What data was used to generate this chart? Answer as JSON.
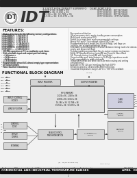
{
  "bg_color": "#ffffff",
  "header_bar_color": "#222222",
  "logo_circle_color": "#888888",
  "logo_bg": "#cccccc",
  "header_bg": "#e0e0e0",
  "header_subtitle": "3.3 VOLT HIGH-DENSITY SUPERFIFO    QUAD-PORT FIFO",
  "header_lines": [
    "1,024 x 36; 2,048 x 36",
    "4,096 x 36; 8,192 x 36",
    "16,384 x 36; 32,768 x 36",
    "65,536 x 36; 131,072 x 36"
  ],
  "part_numbers_right": [
    "IDT72V3640   IDT72V3648",
    "IDT72V3650   IDT72V3658",
    "IDT72V3660   IDT72V3668",
    "IDT72V3680L  IDT72V3680L"
  ],
  "features_title": "FEATURES:",
  "features_left": [
    "  Choice of memory for the following memory configurations:",
    "    IDT72V3640  —  1,024 x 36",
    "    IDT72V3650  —  2,048 x 36",
    "    IDT72V3655  —  4,096 x 36",
    "    IDT72V3660  —  8,192 x 36",
    "    IDT72V3670  —  16,384 x 36",
    "    IDT72V3680  —  32,768 x 36",
    "    IDT72V3690  —  65,536 x 36",
    "    IDT72V10    —  131,072 x 36",
    "  133 MHz operation at 7.5 ns read/write cycle times",
    "  3-bit selectable input and output port bus sizing:",
    "    –  x9 bus size",
    "    –  x18 bus size",
    "    –  x36 bus size",
    "    –  x72 bus size",
    "  Programmable almost-full, almost-empty type representation",
    "  10 Output options",
    "  Fixed, low-level redundancy"
  ],
  "features_right": [
    "  Bus-master arbitration",
    "  Ultra-low power static-mode standby power consumption",
    "  Multi-burst mode series FIFO",
    "  Partial-burst read-back mode programmable settings",
    "  Binary Full and Hi-Low voltage output FIFO sizes",
    "  Programmable burst-length and burst-fill flags, and flags are",
    "  linked to one of eight predefined offsets",
    "  Selectable synchronous/asynchronous between timing modes for almost-",
    "  empty and almost-full flags",
    "  Programmable/programmable flag-to-output register mechanism",
    "  Either SPI Standard timing (using BE and Input or Slave Word",
    "  Fill, Through-timing (using BE and Input flags)",
    "  Output enable port: data outputs in Hi-Z/high-impedance mode",
    "  Easily expandable to width and width",
    "  Independent Read and Write clocks permits reading and writing",
    "  simultaneously",
    "  Available in the 128-pin InterQuad PacPack (IQPP)",
    "  Enhanced-process advanced BiCMOS technology",
    "  Industrial temperature range (-40°C to +85°C) is available"
  ],
  "diagram_title": "FUNCTIONAL BLOCK DIAGRAM",
  "footer_bar_color": "#111111",
  "footer_text_left": "COMMERCIAL AND INDUSTRIAL TEMPERATURE RANGES",
  "footer_text_right": "APRIL  2001",
  "footer_sub_left": "The Americas: IDT Inc. is a trademark of IDT Inc. or respective trademark Integrated Device Technology, Inc.",
  "footer_sub_right": "DSC 60001",
  "box_fill": "#d8d8d8",
  "box_edge": "#555555",
  "fifo_fill": "#e4e4e4",
  "flag_fill": "#c8c8e8",
  "arrow_color": "#333333",
  "line_color": "#444444"
}
